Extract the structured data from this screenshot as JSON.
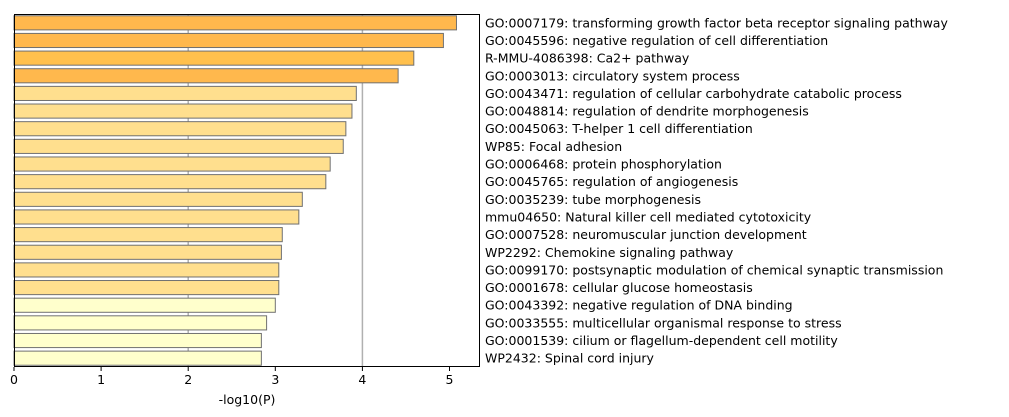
{
  "chart_data": {
    "type": "bar",
    "orientation": "horizontal",
    "xlabel": "-log10(P)",
    "xlim": [
      0,
      5.35
    ],
    "xticks": [
      0,
      1,
      2,
      3,
      4,
      5
    ],
    "grid": "vertical lines at 2 and 4",
    "categories": [
      "GO:0007179: transforming growth factor beta receptor signaling pathway",
      "GO:0045596: negative regulation of cell differentiation",
      "R-MMU-4086398: Ca2+ pathway",
      "GO:0003013: circulatory system process",
      "GO:0043471: regulation of cellular carbohydrate catabolic process",
      "GO:0048814: regulation of dendrite morphogenesis",
      "GO:0045063: T-helper 1 cell differentiation",
      "WP85: Focal adhesion",
      "GO:0006468: protein phosphorylation",
      "GO:0045765: regulation of angiogenesis",
      "GO:0035239: tube morphogenesis",
      "mmu04650: Natural killer cell mediated cytotoxicity",
      "GO:0007528: neuromuscular junction development",
      "WP2292: Chemokine signaling pathway",
      "GO:0099170: postsynaptic modulation of chemical synaptic transmission",
      "GO:0001678: cellular glucose homeostasis",
      "GO:0043392: negative regulation of DNA binding",
      "GO:0033555: multicellular organismal response to stress",
      "GO:0001539: cilium or flagellum-dependent cell motility",
      "WP2432: Spinal cord injury"
    ],
    "values": [
      5.08,
      4.93,
      4.59,
      4.41,
      3.93,
      3.88,
      3.81,
      3.78,
      3.63,
      3.58,
      3.31,
      3.27,
      3.08,
      3.07,
      3.04,
      3.04,
      3.0,
      2.9,
      2.84,
      2.84
    ],
    "colors": [
      "#ffb84d",
      "#ffb84d",
      "#ffc04d",
      "#ffb84d",
      "#ffdf8e",
      "#ffdf8e",
      "#ffdf8e",
      "#ffdf8e",
      "#ffdf8e",
      "#ffdf8e",
      "#ffdf8e",
      "#ffdf8e",
      "#ffdf8e",
      "#ffdf8e",
      "#ffdf8e",
      "#ffdf8e",
      "#ffffcc",
      "#ffffcc",
      "#ffffcc",
      "#ffffcc"
    ]
  }
}
